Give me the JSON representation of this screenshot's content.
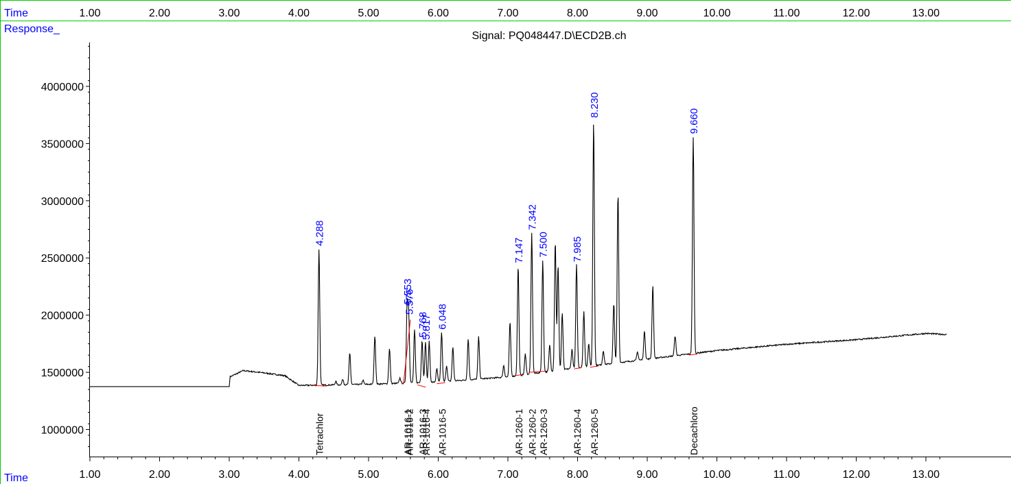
{
  "header": {
    "time_label": "Time",
    "response_label": "Response_"
  },
  "footer": {
    "time_label": "Time"
  },
  "colors": {
    "blue": "#0000ff",
    "trace": "#000000",
    "baseline": "#ff0000",
    "frame": "#00cc00",
    "axis": "#000000"
  },
  "chart_data": {
    "type": "line",
    "title": "Signal: PQ048447.D\\ECD2B.ch",
    "xlabel": "Time",
    "ylabel": "Response_",
    "xlim": [
      0.0,
      13.3
    ],
    "ylim": [
      700000,
      4500000
    ],
    "x_ticks": [
      1.0,
      2.0,
      3.0,
      4.0,
      5.0,
      6.0,
      7.0,
      8.0,
      9.0,
      10.0,
      11.0,
      12.0,
      13.0
    ],
    "x_tick_labels": [
      "1.00",
      "2.00",
      "3.00",
      "4.00",
      "5.00",
      "6.00",
      "7.00",
      "8.00",
      "9.00",
      "10.00",
      "11.00",
      "12.00",
      "13.00"
    ],
    "y_ticks": [
      1000000,
      1500000,
      2000000,
      2500000,
      3000000,
      3500000,
      4000000
    ],
    "y_tick_labels": [
      "1000000",
      "1500000",
      "2000000",
      "2500000",
      "3000000",
      "3500000",
      "4000000"
    ],
    "baseline_points": [
      [
        0.0,
        1375000
      ],
      [
        3.0,
        1375000
      ],
      [
        3.01,
        1460000
      ],
      [
        3.2,
        1515000
      ],
      [
        3.5,
        1495000
      ],
      [
        3.8,
        1470000
      ],
      [
        4.0,
        1385000
      ],
      [
        5.0,
        1395000
      ],
      [
        6.0,
        1415000
      ],
      [
        7.0,
        1460000
      ],
      [
        8.0,
        1540000
      ],
      [
        9.0,
        1615000
      ],
      [
        10.0,
        1690000
      ],
      [
        11.0,
        1745000
      ],
      [
        12.0,
        1785000
      ],
      [
        13.0,
        1840000
      ],
      [
        13.3,
        1830000
      ]
    ],
    "peaks": [
      {
        "rt": 4.288,
        "height": 2580000
      },
      {
        "rt": 4.53,
        "height": 1420000
      },
      {
        "rt": 4.63,
        "height": 1440000
      },
      {
        "rt": 4.73,
        "height": 1670000
      },
      {
        "rt": 4.92,
        "height": 1430000
      },
      {
        "rt": 5.09,
        "height": 1820000
      },
      {
        "rt": 5.3,
        "height": 1710000
      },
      {
        "rt": 5.45,
        "height": 1450000
      },
      {
        "rt": 5.553,
        "height": 2070000
      },
      {
        "rt": 5.576,
        "height": 1980000
      },
      {
        "rt": 5.66,
        "height": 1870000
      },
      {
        "rt": 5.768,
        "height": 1780000
      },
      {
        "rt": 5.817,
        "height": 1760000
      },
      {
        "rt": 5.87,
        "height": 1770000
      },
      {
        "rt": 5.98,
        "height": 1530000
      },
      {
        "rt": 6.048,
        "height": 1850000
      },
      {
        "rt": 6.12,
        "height": 1560000
      },
      {
        "rt": 6.21,
        "height": 1720000
      },
      {
        "rt": 6.43,
        "height": 1790000
      },
      {
        "rt": 6.58,
        "height": 1810000
      },
      {
        "rt": 6.94,
        "height": 1560000
      },
      {
        "rt": 7.03,
        "height": 1940000
      },
      {
        "rt": 7.147,
        "height": 2430000
      },
      {
        "rt": 7.25,
        "height": 1660000
      },
      {
        "rt": 7.342,
        "height": 2720000
      },
      {
        "rt": 7.5,
        "height": 2480000
      },
      {
        "rt": 7.6,
        "height": 1740000
      },
      {
        "rt": 7.68,
        "height": 2650000
      },
      {
        "rt": 7.72,
        "height": 2440000
      },
      {
        "rt": 7.78,
        "height": 2020000
      },
      {
        "rt": 7.92,
        "height": 1700000
      },
      {
        "rt": 7.985,
        "height": 2440000
      },
      {
        "rt": 8.09,
        "height": 2030000
      },
      {
        "rt": 8.16,
        "height": 1750000
      },
      {
        "rt": 8.23,
        "height": 3700000
      },
      {
        "rt": 8.37,
        "height": 1690000
      },
      {
        "rt": 8.52,
        "height": 2100000
      },
      {
        "rt": 8.58,
        "height": 3070000
      },
      {
        "rt": 8.86,
        "height": 1680000
      },
      {
        "rt": 8.96,
        "height": 1860000
      },
      {
        "rt": 9.08,
        "height": 2260000
      },
      {
        "rt": 9.4,
        "height": 1820000
      },
      {
        "rt": 9.66,
        "height": 3560000
      }
    ],
    "peak_labels": [
      {
        "rt": 4.288,
        "label": "4.288"
      },
      {
        "rt": 5.553,
        "label": "5.553"
      },
      {
        "rt": 5.576,
        "label": "5.576"
      },
      {
        "rt": 5.768,
        "label": "5.768"
      },
      {
        "rt": 5.817,
        "label": "5.817"
      },
      {
        "rt": 6.048,
        "label": "6.048"
      },
      {
        "rt": 7.147,
        "label": "7.147"
      },
      {
        "rt": 7.342,
        "label": "7.342"
      },
      {
        "rt": 7.5,
        "label": "7.500"
      },
      {
        "rt": 7.985,
        "label": "7.985"
      },
      {
        "rt": 8.23,
        "label": "8.230"
      },
      {
        "rt": 9.66,
        "label": "9.660"
      }
    ],
    "integration_baselines": [
      [
        4.2,
        1385000,
        4.4,
        1380000
      ],
      [
        5.5,
        1395000,
        5.6,
        1960000
      ],
      [
        5.7,
        1390000,
        5.82,
        1370000
      ],
      [
        5.98,
        1400000,
        6.1,
        1410000
      ],
      [
        7.1,
        1470000,
        7.2,
        1480000
      ],
      [
        7.3,
        1500000,
        7.55,
        1510000
      ],
      [
        7.95,
        1530000,
        8.05,
        1540000
      ],
      [
        8.18,
        1545000,
        8.3,
        1555000
      ],
      [
        9.6,
        1650000,
        9.72,
        1660000
      ]
    ],
    "compound_labels": [
      {
        "rt": 4.288,
        "name": "Tetrachlor"
      },
      {
        "rt": 5.553,
        "name": "AR-1016-1"
      },
      {
        "rt": 5.576,
        "name": "AR-1016-2"
      },
      {
        "rt": 5.768,
        "name": "AR-1016-3"
      },
      {
        "rt": 5.817,
        "name": "AR-1016-4"
      },
      {
        "rt": 6.048,
        "name": "AR-1016-5"
      },
      {
        "rt": 7.147,
        "name": "AR-1260-1"
      },
      {
        "rt": 7.342,
        "name": "AR-1260-2"
      },
      {
        "rt": 7.5,
        "name": "AR-1260-3"
      },
      {
        "rt": 7.985,
        "name": "AR-1260-4"
      },
      {
        "rt": 8.23,
        "name": "AR-1260-5"
      },
      {
        "rt": 9.66,
        "name": "Decachloro"
      }
    ]
  }
}
